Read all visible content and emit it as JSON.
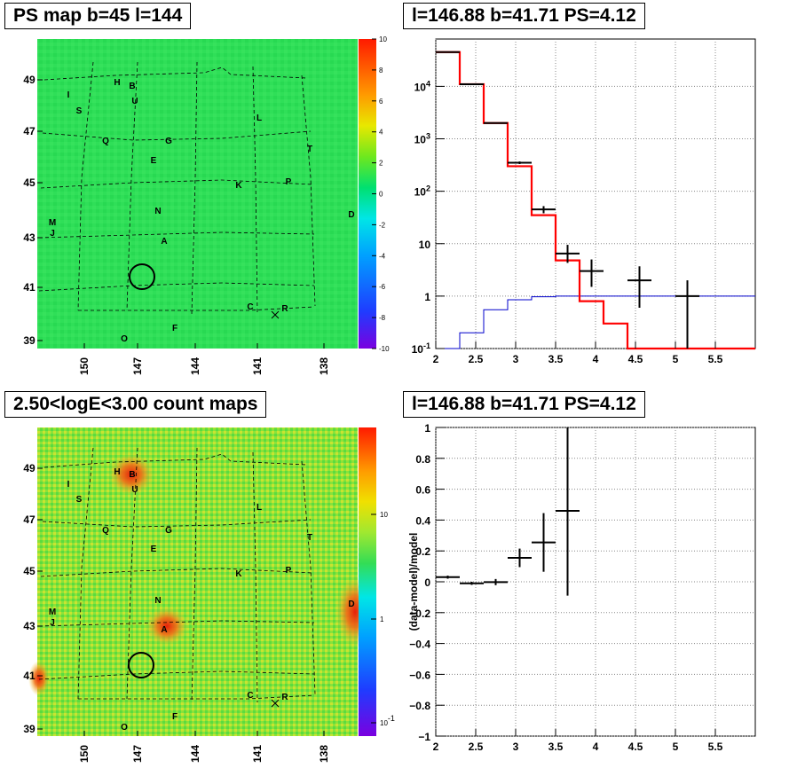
{
  "panels": {
    "tl_title": "PS map b=45 l=144",
    "tr_title": "l=146.88 b=41.71 PS=4.12",
    "bl_title": "2.50<logE<3.00 count maps",
    "br_title": "l=146.88 b=41.71 PS=4.12"
  },
  "colors": {
    "bg_green": "#32e05a",
    "bg_count": "#7ee838",
    "hist_red": "#ff0000",
    "model_blue": "#0000cc"
  },
  "chart_data": [
    {
      "type": "heatmap",
      "title": "PS map b=45 l=144",
      "x_ticks": [
        "150",
        "147",
        "144",
        "141",
        "138"
      ],
      "y_ticks": [
        "49",
        "47",
        "45",
        "43",
        "41",
        "39"
      ],
      "colorbar": {
        "min": -10,
        "max": 10,
        "ticks": [
          "10",
          "8",
          "6",
          "4",
          "2",
          "0",
          "-2",
          "-4",
          "-6",
          "-8",
          "-10"
        ]
      },
      "sources": [
        "H",
        "B",
        "I",
        "U",
        "S",
        "L",
        "Q",
        "G",
        "T",
        "E",
        "K",
        "P",
        "N",
        "D",
        "M",
        "J",
        "A",
        "C",
        "R",
        "O",
        "F"
      ],
      "circle_label": "l=146.88 b=41.71"
    },
    {
      "type": "line",
      "title": "l=146.88 b=41.71 PS=4.12",
      "xlim": [
        2,
        6
      ],
      "x_ticks": [
        "2",
        "2.5",
        "3",
        "3.5",
        "4",
        "4.5",
        "5",
        "5.5"
      ],
      "y_scale": "log",
      "ylim": [
        0.1,
        80000
      ],
      "y_ticks": [
        "10^{4}",
        "10^{3}",
        "10^{2}",
        "10",
        "1",
        "10^{-1}"
      ],
      "series": [
        {
          "role": "model histogram",
          "color": "#ff0000",
          "bins": [
            2.0,
            2.3,
            2.6,
            2.9,
            3.2,
            3.5,
            3.8,
            4.1,
            4.4,
            4.7,
            5.0,
            5.3,
            5.6,
            6.0
          ],
          "values": [
            45000,
            11000,
            2000,
            300,
            35,
            4.8,
            0.8,
            0.3,
            0.1,
            0.1,
            0.1,
            0.1,
            0.1
          ]
        },
        {
          "role": "counts",
          "color": "#000000",
          "x": [
            2.15,
            2.45,
            2.75,
            3.05,
            3.35,
            3.65,
            3.95,
            4.55,
            5.15
          ],
          "y": [
            45000,
            11000,
            2000,
            350,
            45,
            6.5,
            3.0,
            2.0,
            1.0
          ],
          "xerr": [
            0.15,
            0.15,
            0.15,
            0.15,
            0.15,
            0.15,
            0.15,
            0.15,
            0.15
          ],
          "ylo": [
            44800,
            10900,
            1960,
            330,
            38,
            4.3,
            1.5,
            0.6,
            0.1
          ],
          "yhi": [
            45200,
            11100,
            2040,
            370,
            52,
            9.5,
            5.0,
            3.7,
            2.0
          ]
        },
        {
          "role": "background model",
          "color": "#0000cc",
          "bins": [
            2.0,
            2.3,
            2.6,
            2.9,
            3.2,
            3.5,
            3.8,
            4.1,
            4.4,
            4.7,
            5.0,
            5.3,
            5.6,
            6.0
          ],
          "values": [
            0.1,
            0.2,
            0.55,
            0.85,
            0.97,
            1.0,
            1.0,
            1.0,
            1.0,
            1.0,
            1.0,
            1.0,
            1.0
          ]
        }
      ]
    },
    {
      "type": "heatmap",
      "title": "2.50<logE<3.00 count maps",
      "x_ticks": [
        "150",
        "147",
        "144",
        "141",
        "138"
      ],
      "y_ticks": [
        "49",
        "47",
        "45",
        "43",
        "41",
        "39"
      ],
      "colorbar": {
        "scale": "log",
        "ticks": [
          "10",
          "1",
          "10^{-1}"
        ]
      },
      "sources": [
        "H",
        "B",
        "I",
        "U",
        "S",
        "L",
        "Q",
        "G",
        "T",
        "E",
        "K",
        "P",
        "N",
        "D",
        "M",
        "J",
        "A",
        "C",
        "R",
        "O",
        "F"
      ]
    },
    {
      "type": "scatter",
      "title": "l=146.88 b=41.71 PS=4.12",
      "ylabel": "(data-model)/model",
      "xlim": [
        2,
        6
      ],
      "ylim": [
        -1,
        1
      ],
      "x_ticks": [
        "2",
        "2.5",
        "3",
        "3.5",
        "4",
        "4.5",
        "5",
        "5.5"
      ],
      "y_ticks": [
        "1",
        "0.8",
        "0.6",
        "0.4",
        "0.2",
        "0",
        "-0.2",
        "-0.4",
        "-0.6",
        "-0.8",
        "-1"
      ],
      "points": [
        {
          "x": 2.15,
          "y": 0.03,
          "xerr": 0.15,
          "yerr": 0.01
        },
        {
          "x": 2.45,
          "y": -0.01,
          "xerr": 0.15,
          "yerr": 0.01
        },
        {
          "x": 2.75,
          "y": -0.002,
          "xerr": 0.15,
          "yerr": 0.02
        },
        {
          "x": 3.05,
          "y": 0.155,
          "xerr": 0.15,
          "yerr": 0.06
        },
        {
          "x": 3.35,
          "y": 0.255,
          "xerr": 0.15,
          "yerr": 0.19
        },
        {
          "x": 3.65,
          "y": 0.46,
          "xerr": 0.15,
          "yerr": 0.55
        }
      ]
    }
  ]
}
